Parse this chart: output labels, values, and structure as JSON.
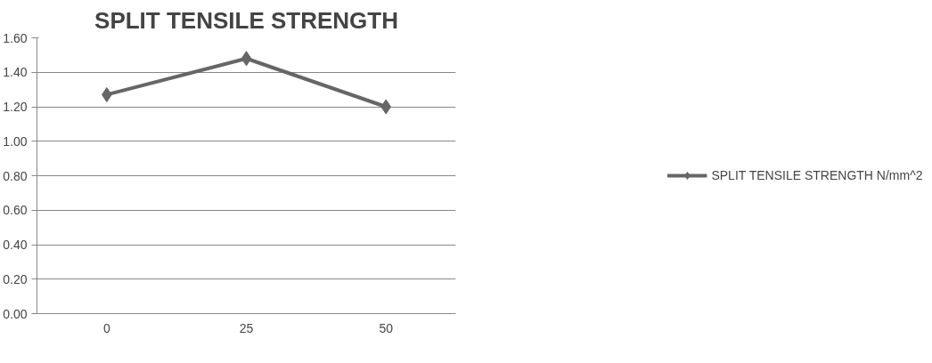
{
  "chart_data": {
    "type": "line",
    "title": "SPLIT TENSILE STRENGTH",
    "categories": [
      "0",
      "25",
      "50"
    ],
    "series": [
      {
        "name": "SPLIT TENSILE STRENGTH N/mm^2",
        "color": "#666666",
        "values": [
          1.27,
          1.48,
          1.2
        ]
      }
    ],
    "ylim": [
      0,
      1.6
    ],
    "yticks": [
      {
        "value": 0,
        "label": "0.00"
      },
      {
        "value": 0.2,
        "label": "0.20"
      },
      {
        "value": 0.4,
        "label": "0.40"
      },
      {
        "value": 0.6,
        "label": "0.60"
      },
      {
        "value": 0.8,
        "label": "0.80"
      },
      {
        "value": 1.0,
        "label": "1.00"
      },
      {
        "value": 1.2,
        "label": "1.20"
      },
      {
        "value": 1.4,
        "label": "1.40"
      },
      {
        "value": 1.6,
        "label": "1.60"
      }
    ],
    "grid": "y",
    "legend": "right",
    "marker": "diamond",
    "line_style": "solid"
  }
}
